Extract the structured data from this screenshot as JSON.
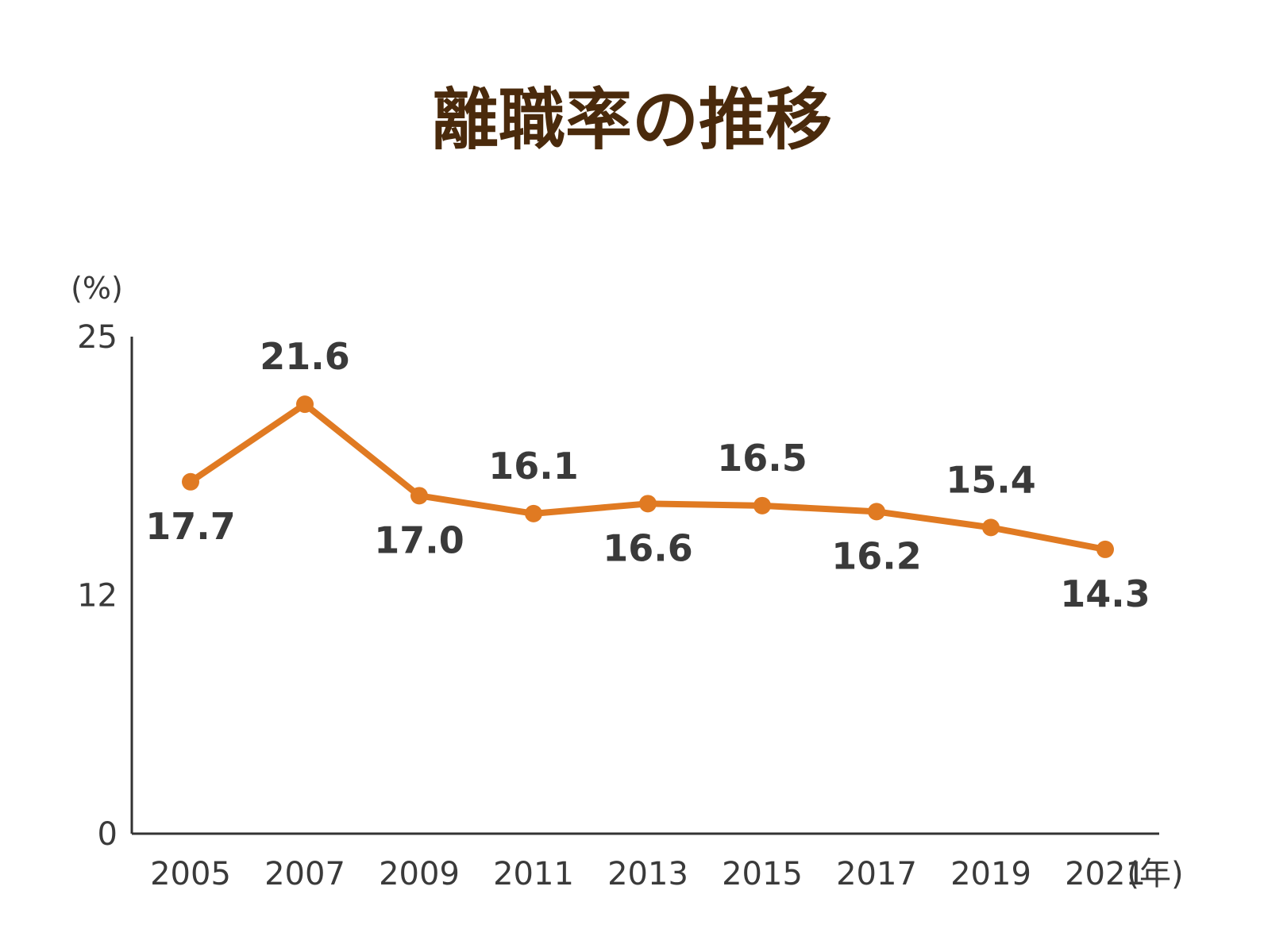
{
  "chart_data": {
    "type": "line",
    "title": "離職率の推移",
    "ylabel": "(%)",
    "xlabel": "(年)",
    "categories": [
      "2005",
      "2007",
      "2009",
      "2011",
      "2013",
      "2015",
      "2017",
      "2019",
      "2021"
    ],
    "series": [
      {
        "values": [
          17.7,
          21.6,
          17.0,
          16.1,
          16.6,
          16.5,
          16.2,
          15.4,
          14.3
        ]
      }
    ],
    "data_labels": [
      "17.7",
      "21.6",
      "17.0",
      "16.1",
      "16.6",
      "16.5",
      "16.2",
      "15.4",
      "14.3"
    ],
    "label_positions": [
      "below",
      "above",
      "below",
      "above",
      "below",
      "above",
      "below",
      "above",
      "below"
    ],
    "yticks": [
      "0",
      "12",
      "25"
    ],
    "ylim": [
      0,
      25
    ],
    "grid": false,
    "legend": "none"
  },
  "colors": {
    "title": "#4a2a0c",
    "line": "#e07a22",
    "axis": "#333333",
    "text": "#3a3a3a"
  }
}
